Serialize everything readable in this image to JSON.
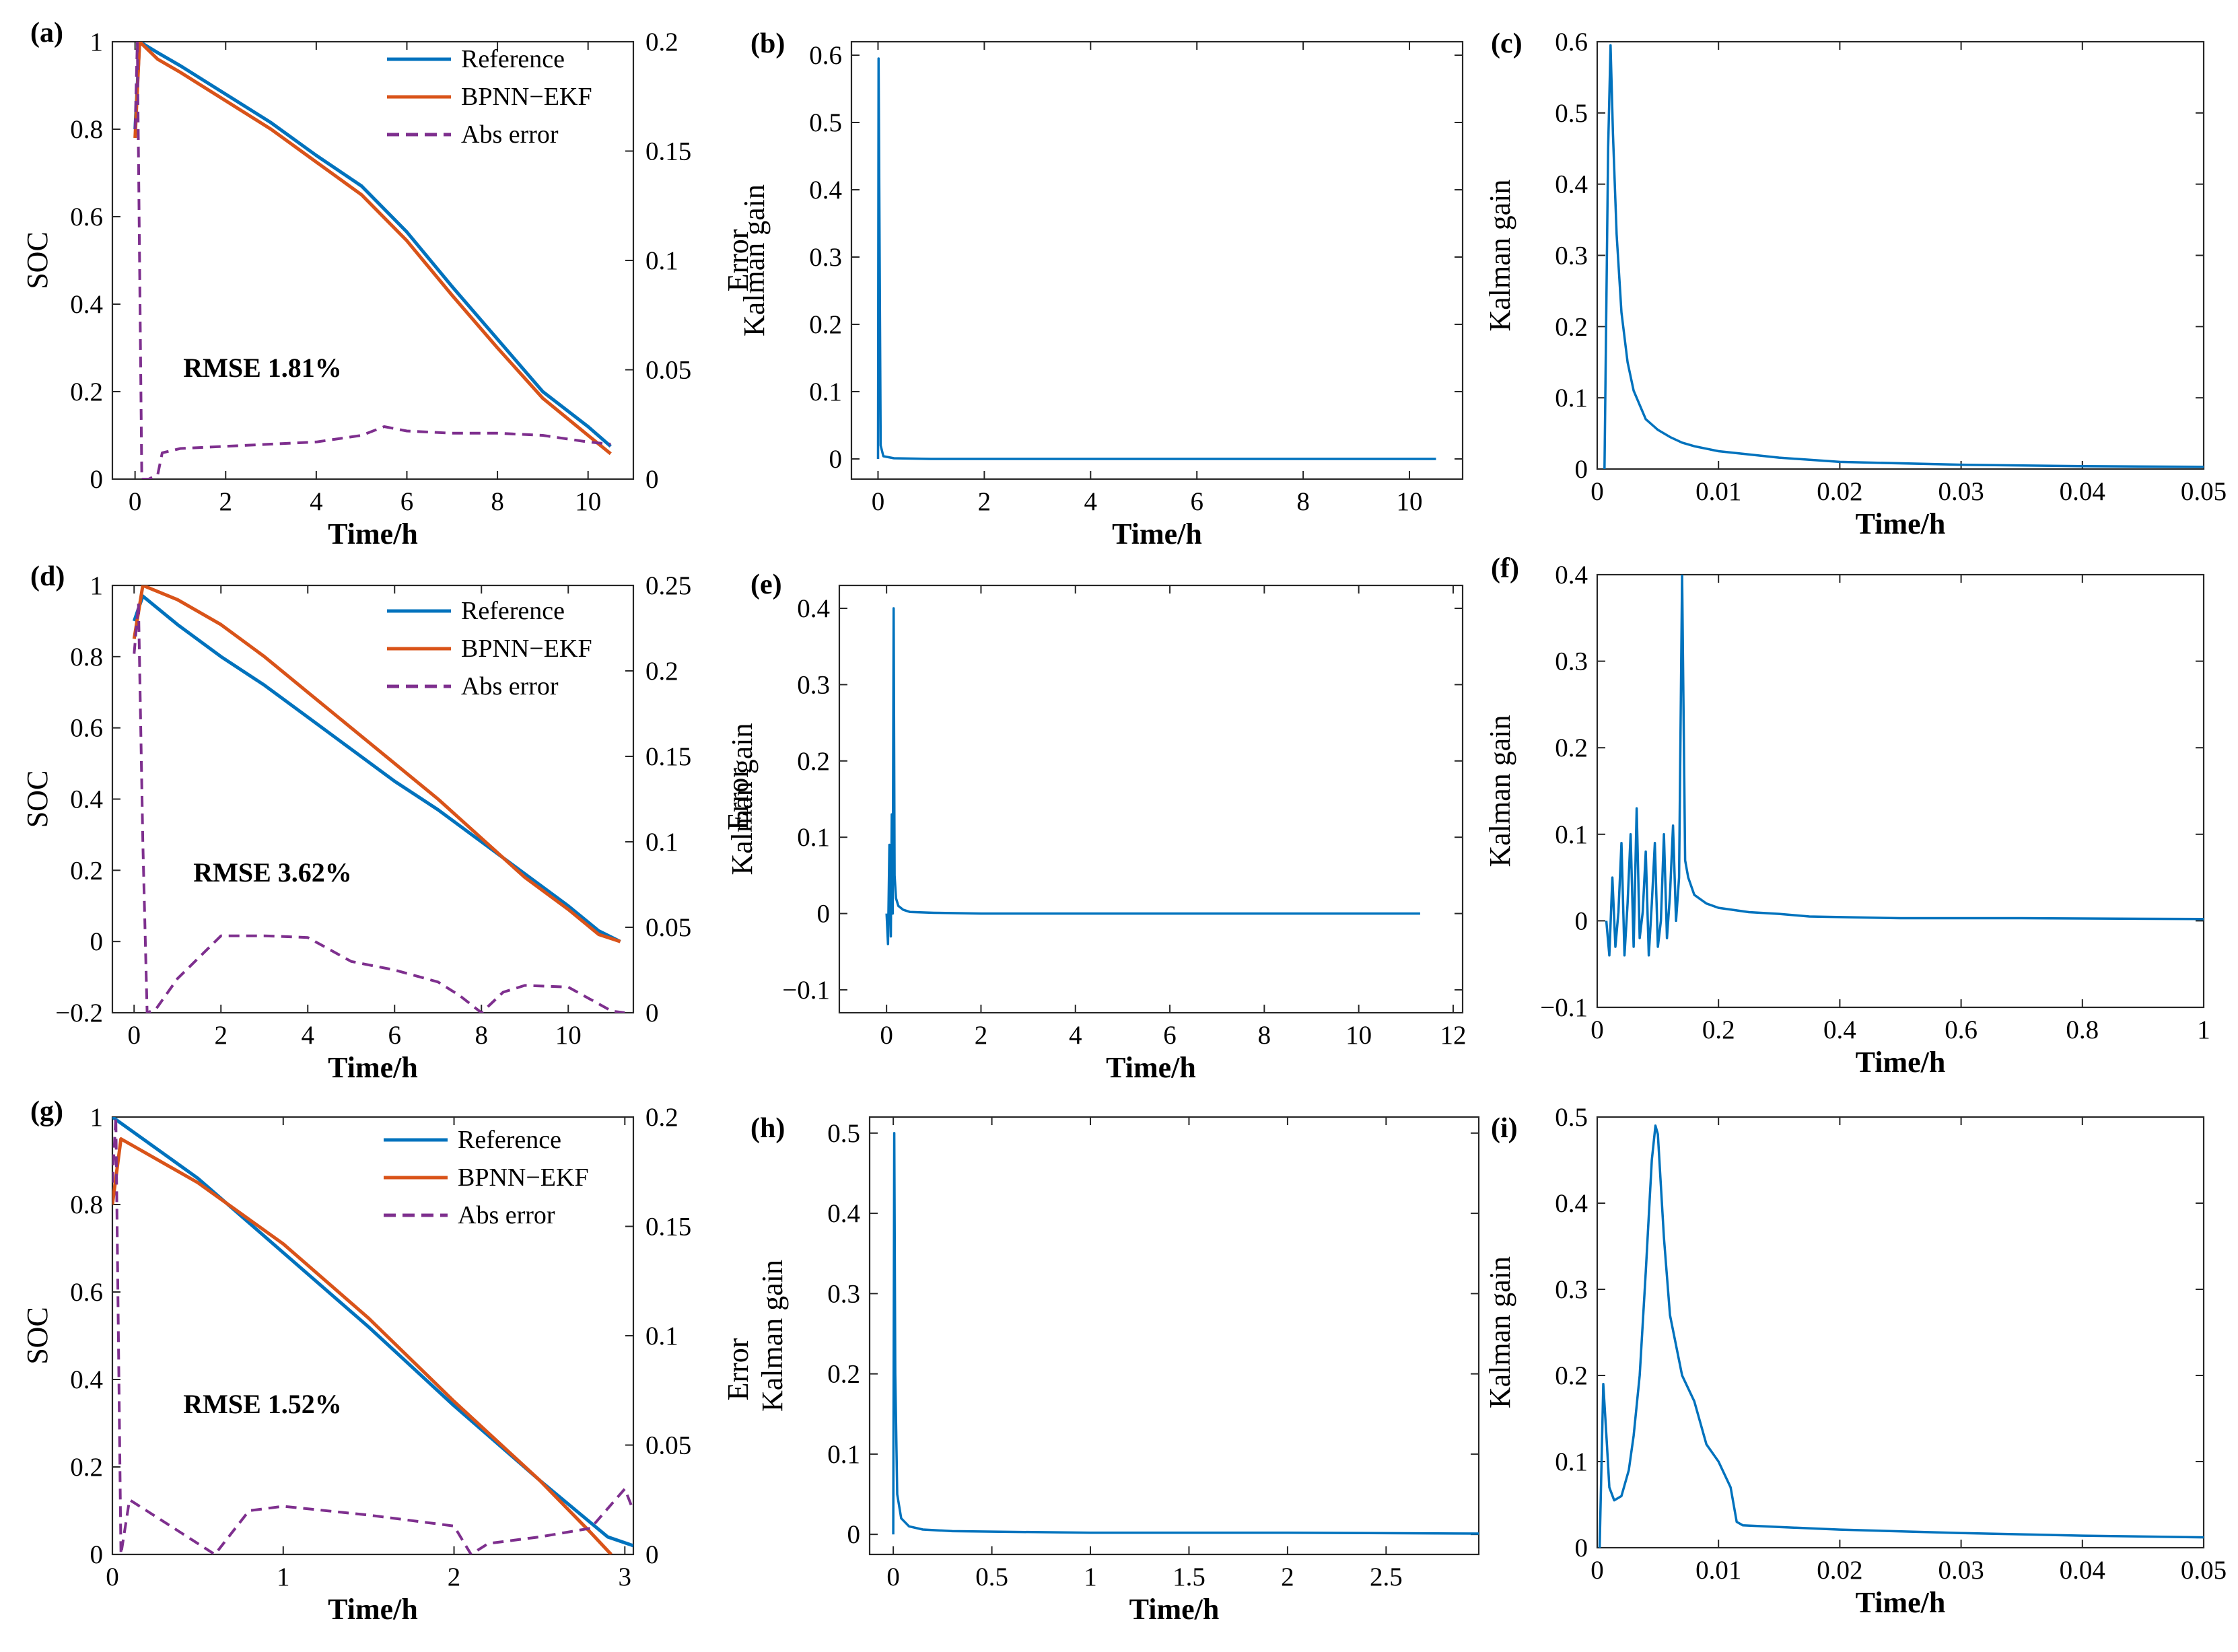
{
  "colors": {
    "reference": "#0072BD",
    "bpnn_ekf": "#D95319",
    "abs_error": "#7E2F8E",
    "kalman": "#0072BD"
  },
  "chart_data": [
    {
      "panel": "(a)",
      "type": "line",
      "xlabel": "Time/h",
      "ylabel": "SOC",
      "y2label": "Error",
      "xlim": [
        -0.5,
        11
      ],
      "ylim": [
        0,
        1
      ],
      "y2lim": [
        0,
        0.2
      ],
      "xticks": [
        0,
        2,
        4,
        6,
        8,
        10
      ],
      "yticks": [
        0,
        0.2,
        0.4,
        0.6,
        0.8,
        1
      ],
      "y2ticks": [
        0,
        0.05,
        0.1,
        0.15,
        0.2
      ],
      "xtick_labels": [
        "0",
        "2",
        "4",
        "6",
        "8",
        "10"
      ],
      "ytick_labels": [
        "0",
        "0.2",
        "0.4",
        "0.6",
        "0.8",
        "1"
      ],
      "y2tick_labels": [
        "0",
        "0.05",
        "0.1",
        "0.15",
        "0.2"
      ],
      "annotation": "RMSE 1.81%",
      "legend": [
        "Reference",
        "BPNN−EKF",
        "Abs error"
      ],
      "legend_position": "top-right",
      "series": [
        {
          "name": "Reference",
          "axis": "left",
          "x": [
            0,
            0.1,
            0.5,
            1,
            2,
            3,
            4,
            5,
            6,
            7,
            8,
            9,
            10,
            10.5
          ],
          "y": [
            0.8,
            1.0,
            0.975,
            0.945,
            0.88,
            0.815,
            0.74,
            0.67,
            0.565,
            0.44,
            0.32,
            0.2,
            0.12,
            0.075
          ]
        },
        {
          "name": "BPNN−EKF",
          "axis": "left",
          "x": [
            0,
            0.1,
            0.5,
            1,
            2,
            3,
            4,
            5,
            6,
            7,
            8,
            9,
            10,
            10.5
          ],
          "y": [
            0.78,
            1.0,
            0.96,
            0.93,
            0.865,
            0.8,
            0.725,
            0.65,
            0.545,
            0.42,
            0.3,
            0.185,
            0.1,
            0.058
          ]
        },
        {
          "name": "Abs error",
          "axis": "right",
          "x": [
            0,
            0.05,
            0.15,
            0.3,
            0.5,
            0.6,
            1,
            2,
            3,
            4,
            5,
            5.5,
            6,
            7,
            8,
            9,
            10,
            10.5
          ],
          "y": [
            0.16,
            0.2,
            0.0,
            0.0,
            0.002,
            0.012,
            0.014,
            0.015,
            0.016,
            0.017,
            0.02,
            0.024,
            0.022,
            0.021,
            0.021,
            0.02,
            0.017,
            0.016
          ]
        }
      ]
    },
    {
      "panel": "(b)",
      "type": "line",
      "xlabel": "Time/h",
      "ylabel": "Kalman gain",
      "xlim": [
        -0.5,
        11
      ],
      "ylim": [
        -0.03,
        0.62
      ],
      "xticks": [
        0,
        2,
        4,
        6,
        8,
        10
      ],
      "yticks": [
        0,
        0.1,
        0.2,
        0.3,
        0.4,
        0.5,
        0.6
      ],
      "xtick_labels": [
        "0",
        "2",
        "4",
        "6",
        "8",
        "10"
      ],
      "ytick_labels": [
        "0",
        "0.1",
        "0.2",
        "0.3",
        "0.4",
        "0.5",
        "0.6"
      ],
      "series": [
        {
          "name": "",
          "x": [
            0,
            0.01,
            0.05,
            0.1,
            0.3,
            1,
            5,
            10.5
          ],
          "y": [
            0.0,
            0.595,
            0.02,
            0.004,
            0.001,
            0.0,
            0.0,
            0.0
          ]
        }
      ]
    },
    {
      "panel": "(c)",
      "type": "line",
      "xlabel": "Time/h",
      "ylabel": "Kalman gain",
      "xlim": [
        0,
        0.05
      ],
      "ylim": [
        0,
        0.6
      ],
      "xticks": [
        0,
        0.01,
        0.02,
        0.03,
        0.04,
        0.05
      ],
      "yticks": [
        0,
        0.1,
        0.2,
        0.3,
        0.4,
        0.5,
        0.6
      ],
      "xtick_labels": [
        "0",
        "0.01",
        "0.02",
        "0.03",
        "0.04",
        "0.05"
      ],
      "ytick_labels": [
        "0",
        "0.1",
        "0.2",
        "0.3",
        "0.4",
        "0.5",
        "0.6"
      ],
      "series": [
        {
          "name": "",
          "x": [
            0.0006,
            0.0009,
            0.0011,
            0.0013,
            0.0016,
            0.002,
            0.0025,
            0.003,
            0.0035,
            0.004,
            0.005,
            0.006,
            0.007,
            0.008,
            0.01,
            0.015,
            0.02,
            0.03,
            0.04,
            0.05
          ],
          "y": [
            0.0,
            0.45,
            0.595,
            0.47,
            0.33,
            0.22,
            0.15,
            0.11,
            0.09,
            0.07,
            0.055,
            0.045,
            0.037,
            0.032,
            0.025,
            0.016,
            0.01,
            0.006,
            0.004,
            0.003
          ]
        }
      ]
    },
    {
      "panel": "(d)",
      "type": "line",
      "xlabel": "Time/h",
      "ylabel": "SOC",
      "y2label": "Error",
      "xlim": [
        -0.5,
        11.5
      ],
      "ylim": [
        -0.2,
        1
      ],
      "y2lim": [
        0,
        0.25
      ],
      "xticks": [
        0,
        2,
        4,
        6,
        8,
        10
      ],
      "yticks": [
        -0.2,
        0,
        0.2,
        0.4,
        0.6,
        0.8,
        1
      ],
      "y2ticks": [
        0,
        0.05,
        0.1,
        0.15,
        0.2,
        0.25
      ],
      "xtick_labels": [
        "0",
        "2",
        "4",
        "6",
        "8",
        "10"
      ],
      "ytick_labels": [
        "−0.2",
        "0",
        "0.2",
        "0.4",
        "0.6",
        "0.8",
        "1"
      ],
      "y2tick_labels": [
        "0",
        "0.05",
        "0.1",
        "0.15",
        "0.2",
        "0.25"
      ],
      "annotation": "RMSE 3.62%",
      "legend": [
        "Reference",
        "BPNN−EKF",
        "Abs error"
      ],
      "legend_position": "top-right",
      "series": [
        {
          "name": "Reference",
          "axis": "left",
          "x": [
            0,
            0.2,
            1,
            2,
            3,
            4,
            5,
            6,
            7,
            8,
            9,
            10,
            10.7,
            11.2
          ],
          "y": [
            0.9,
            0.97,
            0.89,
            0.8,
            0.72,
            0.63,
            0.54,
            0.45,
            0.37,
            0.28,
            0.19,
            0.1,
            0.03,
            0.0
          ]
        },
        {
          "name": "BPNN−EKF",
          "axis": "left",
          "x": [
            0,
            0.2,
            1,
            2,
            3,
            4,
            5,
            6,
            7,
            8,
            9,
            10,
            10.7,
            11.2
          ],
          "y": [
            0.85,
            1.0,
            0.96,
            0.89,
            0.8,
            0.7,
            0.6,
            0.5,
            0.4,
            0.29,
            0.18,
            0.09,
            0.02,
            0.0
          ]
        },
        {
          "name": "Abs error",
          "axis": "right",
          "x": [
            0,
            0.1,
            0.2,
            0.3,
            0.5,
            1,
            2,
            3,
            4,
            5,
            6,
            7,
            7.5,
            8,
            8.5,
            9,
            10,
            10.5,
            11,
            11.3
          ],
          "y": [
            0.21,
            0.24,
            0.1,
            0.0,
            0.002,
            0.02,
            0.045,
            0.045,
            0.044,
            0.03,
            0.025,
            0.018,
            0.01,
            0.0,
            0.012,
            0.016,
            0.015,
            0.008,
            0.001,
            0.0
          ]
        }
      ]
    },
    {
      "panel": "(e)",
      "type": "line",
      "xlabel": "Time/h",
      "ylabel": "Kalman gain",
      "xlim": [
        -1,
        12.2
      ],
      "ylim": [
        -0.13,
        0.43
      ],
      "xticks": [
        0,
        2,
        4,
        6,
        8,
        10,
        12
      ],
      "yticks": [
        -0.1,
        0,
        0.1,
        0.2,
        0.3,
        0.4
      ],
      "xtick_labels": [
        "0",
        "2",
        "4",
        "6",
        "8",
        "10",
        "12"
      ],
      "ytick_labels": [
        "−0.1",
        "0",
        "0.1",
        "0.2",
        "0.3",
        "0.4"
      ],
      "series": [
        {
          "name": "",
          "x": [
            0,
            0.03,
            0.06,
            0.09,
            0.11,
            0.13,
            0.15,
            0.17,
            0.2,
            0.25,
            0.35,
            0.5,
            1,
            2,
            5,
            11.3
          ],
          "y": [
            0.0,
            -0.04,
            0.09,
            -0.03,
            0.13,
            0.0,
            0.4,
            0.05,
            0.02,
            0.01,
            0.005,
            0.002,
            0.001,
            0.0,
            0.0,
            0.0
          ]
        }
      ]
    },
    {
      "panel": "(f)",
      "type": "line",
      "xlabel": "Time/h",
      "ylabel": "Kalman gain",
      "xlim": [
        0,
        1
      ],
      "ylim": [
        -0.1,
        0.4
      ],
      "xticks": [
        0,
        0.2,
        0.4,
        0.6,
        0.8,
        1
      ],
      "yticks": [
        -0.1,
        0,
        0.1,
        0.2,
        0.3,
        0.4
      ],
      "xtick_labels": [
        "0",
        "0.2",
        "0.4",
        "0.6",
        "0.8",
        "1"
      ],
      "ytick_labels": [
        "−0.1",
        "0",
        "0.1",
        "0.2",
        "0.3",
        "0.4"
      ],
      "series": [
        {
          "name": "",
          "x": [
            0.015,
            0.02,
            0.025,
            0.03,
            0.035,
            0.04,
            0.045,
            0.05,
            0.055,
            0.06,
            0.065,
            0.07,
            0.075,
            0.08,
            0.085,
            0.09,
            0.095,
            0.1,
            0.105,
            0.11,
            0.115,
            0.12,
            0.125,
            0.13,
            0.135,
            0.14,
            0.145,
            0.15,
            0.16,
            0.18,
            0.2,
            0.25,
            0.3,
            0.35,
            0.5,
            0.7,
            1.0
          ],
          "y": [
            0.0,
            -0.04,
            0.05,
            -0.03,
            0.01,
            0.09,
            -0.04,
            0.02,
            0.1,
            -0.03,
            0.13,
            -0.02,
            0.01,
            0.08,
            -0.04,
            0.02,
            0.09,
            -0.03,
            0.0,
            0.1,
            -0.02,
            0.03,
            0.11,
            0.0,
            0.05,
            0.4,
            0.07,
            0.05,
            0.03,
            0.02,
            0.015,
            0.01,
            0.008,
            0.005,
            0.003,
            0.003,
            0.002
          ]
        }
      ]
    },
    {
      "panel": "(g)",
      "type": "line",
      "xlabel": "Time/h",
      "ylabel": "SOC",
      "y2label": "Error",
      "xlim": [
        0,
        3.05
      ],
      "ylim": [
        0,
        1
      ],
      "y2lim": [
        0,
        0.2
      ],
      "xticks": [
        0,
        1,
        2,
        3
      ],
      "yticks": [
        0,
        0.2,
        0.4,
        0.6,
        0.8,
        1
      ],
      "y2ticks": [
        0,
        0.05,
        0.1,
        0.15,
        0.2
      ],
      "xtick_labels": [
        "0",
        "1",
        "2",
        "3"
      ],
      "ytick_labels": [
        "0",
        "0.2",
        "0.4",
        "0.6",
        "0.8",
        "1"
      ],
      "y2tick_labels": [
        "0",
        "0.05",
        "0.1",
        "0.15",
        "0.2"
      ],
      "annotation": "RMSE 1.52%",
      "legend": [
        "Reference",
        "BPNN−EKF",
        "Abs error"
      ],
      "legend_position": "top-right",
      "series": [
        {
          "name": "Reference",
          "axis": "left",
          "x": [
            0,
            0.5,
            1,
            1.5,
            2,
            2.5,
            2.9,
            3.05
          ],
          "y": [
            1.0,
            0.86,
            0.69,
            0.52,
            0.34,
            0.17,
            0.04,
            0.02
          ]
        },
        {
          "name": "BPNN−EKF",
          "axis": "left",
          "x": [
            0,
            0.05,
            0.5,
            1,
            1.5,
            2,
            2.5,
            2.8,
            2.92
          ],
          "y": [
            0.8,
            0.95,
            0.85,
            0.71,
            0.54,
            0.35,
            0.17,
            0.05,
            0.0
          ]
        },
        {
          "name": "Abs error",
          "axis": "right",
          "x": [
            0,
            0.02,
            0.05,
            0.1,
            0.2,
            0.4,
            0.6,
            0.8,
            1.0,
            1.5,
            2.0,
            2.1,
            2.2,
            2.5,
            2.8,
            3.0,
            3.05
          ],
          "y": [
            0.17,
            0.2,
            0.0,
            0.025,
            0.02,
            0.01,
            0.0,
            0.02,
            0.022,
            0.018,
            0.013,
            0.0,
            0.005,
            0.008,
            0.012,
            0.03,
            0.02
          ]
        }
      ]
    },
    {
      "panel": "(h)",
      "type": "line",
      "xlabel": "Time/h",
      "ylabel": "Kalman gain",
      "xlim": [
        -0.12,
        2.97
      ],
      "ylim": [
        -0.025,
        0.52
      ],
      "xticks": [
        0,
        0.5,
        1,
        1.5,
        2,
        2.5
      ],
      "yticks": [
        0,
        0.1,
        0.2,
        0.3,
        0.4,
        0.5
      ],
      "xtick_labels": [
        "0",
        "0.5",
        "1",
        "1.5",
        "2",
        "2.5"
      ],
      "ytick_labels": [
        "0",
        "0.1",
        "0.2",
        "0.3",
        "0.4",
        "0.5"
      ],
      "series": [
        {
          "name": "",
          "x": [
            0,
            0.005,
            0.01,
            0.02,
            0.04,
            0.08,
            0.15,
            0.3,
            1,
            2,
            2.97
          ],
          "y": [
            0.0,
            0.5,
            0.2,
            0.05,
            0.02,
            0.01,
            0.006,
            0.004,
            0.002,
            0.002,
            0.001
          ]
        }
      ]
    },
    {
      "panel": "(i)",
      "type": "line",
      "xlabel": "Time/h",
      "ylabel": "Kalman gain",
      "xlim": [
        0,
        0.05
      ],
      "ylim": [
        0,
        0.5
      ],
      "xticks": [
        0,
        0.01,
        0.02,
        0.03,
        0.04,
        0.05
      ],
      "yticks": [
        0,
        0.1,
        0.2,
        0.3,
        0.4,
        0.5
      ],
      "xtick_labels": [
        "0",
        "0.01",
        "0.02",
        "0.03",
        "0.04",
        "0.05"
      ],
      "ytick_labels": [
        "0",
        "0.1",
        "0.2",
        "0.3",
        "0.4",
        "0.5"
      ],
      "series": [
        {
          "name": "",
          "x": [
            0.0002,
            0.0005,
            0.0008,
            0.001,
            0.0014,
            0.002,
            0.0026,
            0.003,
            0.0035,
            0.004,
            0.0045,
            0.0048,
            0.005,
            0.0055,
            0.006,
            0.007,
            0.008,
            0.009,
            0.01,
            0.011,
            0.0115,
            0.012,
            0.015,
            0.02,
            0.03,
            0.04,
            0.05
          ],
          "y": [
            0.0,
            0.19,
            0.12,
            0.07,
            0.055,
            0.06,
            0.09,
            0.13,
            0.2,
            0.32,
            0.45,
            0.49,
            0.48,
            0.36,
            0.27,
            0.2,
            0.17,
            0.12,
            0.1,
            0.07,
            0.03,
            0.026,
            0.024,
            0.021,
            0.017,
            0.014,
            0.012
          ]
        }
      ]
    }
  ]
}
